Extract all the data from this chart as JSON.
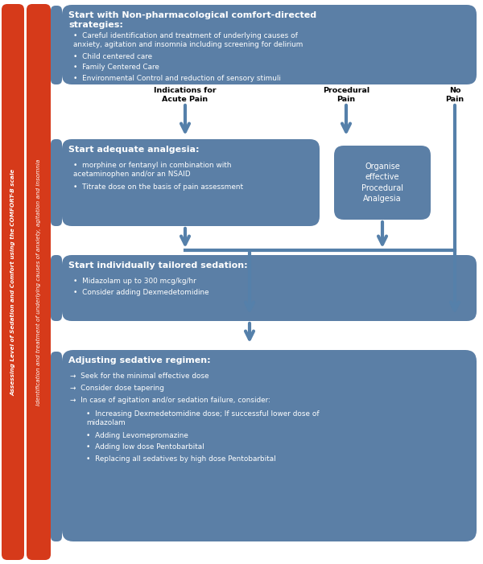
{
  "bg_color": "#ffffff",
  "red_color": "#d63a1a",
  "box_color": "#5b7fa6",
  "arrow_color": "#5580aa",
  "sidebar1_text": "Assessing Level of Sedation and Comfort using the COMFORT-B scale",
  "sidebar2_text": "Identification and treatment of underlying causes of anxiety, agitation and insomnia",
  "box1_title": "Start with Non-pharmacological comfort-directed\nstrategies:",
  "box1_bullets": [
    "Careful identification and treatment of underlying causes of\nanxiety, agitation and insomnia including screening for delirium",
    "Child centered care",
    "Family Centered Care",
    "Environmental Control and reduction of sensory stimuli"
  ],
  "label_acute": "Indications for\nAcute Pain",
  "label_procedural": "Procedural\nPain",
  "label_no_pain": "No\nPain",
  "box2_title": "Start adequate analgesia:",
  "box2_bullets": [
    "morphine or fentanyl in combination with\nacetaminophen and/or an NSAID",
    "Titrate dose on the basis of pain assessment"
  ],
  "box2b_text": "Organise\neffective\nProcedural\nAnalgesia",
  "box3_title": "Start individually tailored sedation:",
  "box3_bullets": [
    "Midazolam up to 300 mcg/kg/hr",
    "Consider adding Dexmedetomidine"
  ],
  "box4_title": "Adjusting sedative regimen:",
  "box4_arrows": [
    "Seek for the minimal effective dose",
    "Consider dose tapering",
    "In case of agitation and/or sedation failure, consider:"
  ],
  "box4_subbullets": [
    "Increasing Dexmedetomidine dose; If successful lower dose of\nmidazolam",
    "Adding Levomepromazine",
    "Adding low dose Pentobarbital",
    "Replacing all sedatives by high dose Pentobarbital"
  ],
  "figw": 6.0,
  "figh": 7.01,
  "dpi": 100
}
